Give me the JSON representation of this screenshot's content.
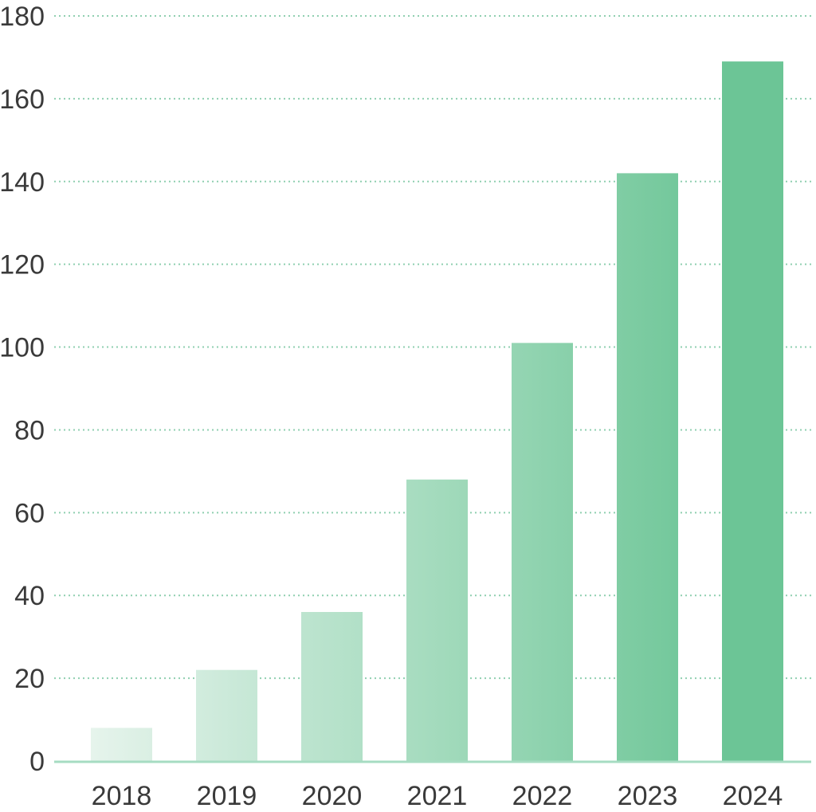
{
  "chart_data": {
    "type": "bar",
    "categories": [
      "2018",
      "2019",
      "2020",
      "2021",
      "2022",
      "2023",
      "2024"
    ],
    "series": [
      {
        "values": [
          8,
          22,
          36,
          68,
          101,
          142,
          169
        ]
      }
    ],
    "title": "",
    "xlabel": "",
    "ylabel": "",
    "ylim": [
      0,
      180
    ],
    "yticks": [
      0,
      20,
      40,
      60,
      80,
      100,
      120,
      140,
      160,
      180
    ],
    "grid": true,
    "legend": "none",
    "colors": {
      "bar_lightest": "#e6f4ec",
      "bar_darkest": "#6cc596",
      "gridline": "#8fcfb0",
      "baseline": "#a6dcc2",
      "text": "#3a3a3a"
    }
  }
}
